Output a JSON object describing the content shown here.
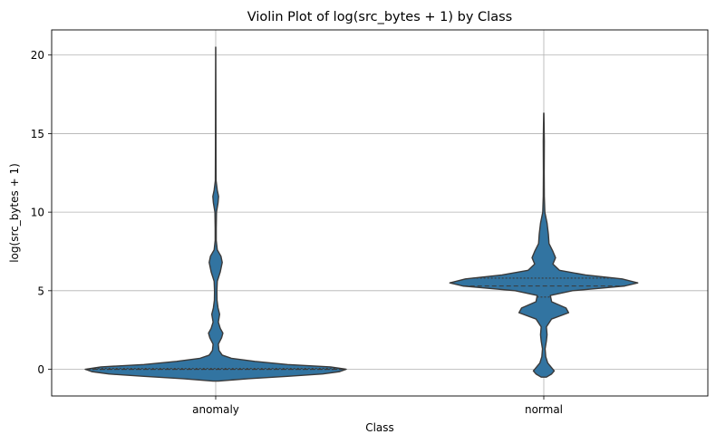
{
  "chart_data": {
    "type": "violin",
    "title": "Violin Plot of log(src_bytes + 1) by Class",
    "xlabel": "Class",
    "ylabel": "log(src_bytes + 1)",
    "categories": [
      "anomaly",
      "normal"
    ],
    "ylim": [
      -1.7,
      21.6
    ],
    "yticks": [
      0,
      5,
      10,
      15,
      20
    ],
    "grid": true,
    "colors": {
      "fill": "#3274a1",
      "edge": "#3a3a3a",
      "grid": "#b0b0b0"
    },
    "violins": [
      {
        "category": "anomaly",
        "quartiles": [
          0.0,
          0.0,
          0.05
        ],
        "density": [
          [
            -0.75,
            0.02
          ],
          [
            -0.6,
            0.25
          ],
          [
            -0.45,
            0.55
          ],
          [
            -0.3,
            0.82
          ],
          [
            -0.15,
            0.95
          ],
          [
            0.0,
            1.0
          ],
          [
            0.15,
            0.88
          ],
          [
            0.3,
            0.55
          ],
          [
            0.5,
            0.3
          ],
          [
            0.7,
            0.12
          ],
          [
            0.9,
            0.05
          ],
          [
            1.2,
            0.025
          ],
          [
            1.6,
            0.02
          ],
          [
            2.0,
            0.045
          ],
          [
            2.3,
            0.055
          ],
          [
            2.6,
            0.035
          ],
          [
            3.0,
            0.02
          ],
          [
            3.5,
            0.03
          ],
          [
            3.9,
            0.018
          ],
          [
            4.4,
            0.01
          ],
          [
            5.0,
            0.009
          ],
          [
            5.6,
            0.012
          ],
          [
            6.2,
            0.035
          ],
          [
            6.8,
            0.05
          ],
          [
            7.2,
            0.04
          ],
          [
            7.6,
            0.012
          ],
          [
            8.2,
            0.004
          ],
          [
            9.0,
            0.004
          ],
          [
            10.0,
            0.006
          ],
          [
            10.6,
            0.018
          ],
          [
            11.0,
            0.022
          ],
          [
            11.4,
            0.012
          ],
          [
            12.0,
            0.003
          ],
          [
            14.0,
            0.002
          ],
          [
            17.0,
            0.0015
          ],
          [
            20.5,
            0.0005
          ]
        ]
      },
      {
        "category": "normal",
        "quartiles": [
          4.6,
          5.3,
          5.8
        ],
        "density": [
          [
            -0.5,
            0.02
          ],
          [
            -0.3,
            0.06
          ],
          [
            -0.1,
            0.08
          ],
          [
            0.1,
            0.06
          ],
          [
            0.4,
            0.03
          ],
          [
            0.8,
            0.015
          ],
          [
            1.3,
            0.01
          ],
          [
            1.8,
            0.02
          ],
          [
            2.2,
            0.025
          ],
          [
            2.7,
            0.02
          ],
          [
            3.2,
            0.06
          ],
          [
            3.6,
            0.19
          ],
          [
            3.9,
            0.17
          ],
          [
            4.3,
            0.06
          ],
          [
            4.7,
            0.05
          ],
          [
            5.0,
            0.22
          ],
          [
            5.3,
            0.62
          ],
          [
            5.5,
            0.72
          ],
          [
            5.75,
            0.6
          ],
          [
            6.0,
            0.32
          ],
          [
            6.3,
            0.12
          ],
          [
            6.7,
            0.07
          ],
          [
            7.1,
            0.09
          ],
          [
            7.5,
            0.07
          ],
          [
            8.0,
            0.04
          ],
          [
            8.6,
            0.035
          ],
          [
            9.3,
            0.025
          ],
          [
            10.0,
            0.008
          ],
          [
            11.0,
            0.004
          ],
          [
            12.5,
            0.003
          ],
          [
            14.5,
            0.004
          ],
          [
            16.3,
            0.001
          ]
        ]
      }
    ]
  }
}
